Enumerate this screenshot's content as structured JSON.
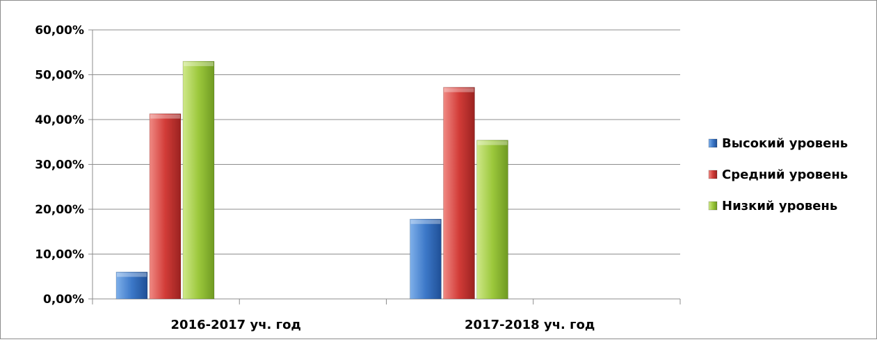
{
  "chart_data": {
    "type": "bar",
    "categories": [
      "2016-2017 уч. год",
      "2017-2018 уч. год"
    ],
    "series": [
      {
        "name": "Высокий уровень",
        "values": [
          6.0,
          17.8
        ],
        "color": "#3c78c8"
      },
      {
        "name": "Средний уровень",
        "values": [
          41.3,
          47.2
        ],
        "color": "#d23c38"
      },
      {
        "name": "Низкий уровень",
        "values": [
          53.0,
          35.4
        ],
        "color": "#9cc83c"
      }
    ],
    "ylim": [
      0,
      60
    ],
    "yticks": [
      "0,00%",
      "10,00%",
      "20,00%",
      "30,00%",
      "40,00%",
      "50,00%",
      "60,00%"
    ],
    "grid": true,
    "legend_position": "right"
  }
}
